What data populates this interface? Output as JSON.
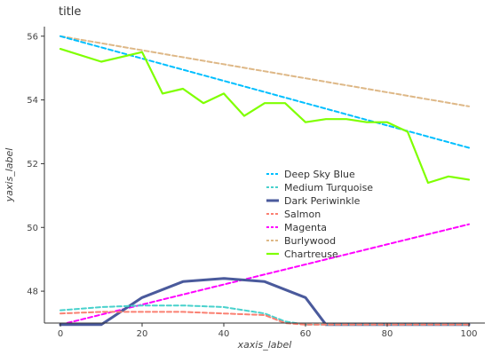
{
  "chart_data": {
    "type": "line",
    "title": "title",
    "xlabel": "xaxis_label",
    "ylabel": "yaxis_label",
    "xlim": [
      0,
      100
    ],
    "ylim": [
      47,
      56.3
    ],
    "xticks": [
      0,
      20,
      40,
      60,
      80,
      100
    ],
    "yticks": [
      48,
      50,
      52,
      54,
      56
    ],
    "grid": false,
    "legend_position": "center",
    "series": [
      {
        "name": "Deep Sky Blue",
        "color": "#00bfff",
        "x": [
          0,
          100
        ],
        "y": [
          56.0,
          52.5
        ]
      },
      {
        "name": "Medium Turquoise",
        "color": "#48d1cc",
        "x": [
          0,
          10,
          20,
          30,
          40,
          50,
          55,
          60,
          70,
          80,
          90,
          100
        ],
        "y": [
          47.4,
          47.5,
          47.55,
          47.55,
          47.5,
          47.3,
          47.05,
          46.95,
          46.95,
          46.95,
          46.95,
          46.95
        ]
      },
      {
        "name": "Dark Periwinkle",
        "color": "#4a5a9c",
        "x": [
          0,
          10,
          20,
          30,
          40,
          50,
          60,
          65,
          70,
          80,
          90,
          100
        ],
        "y": [
          46.95,
          46.95,
          47.8,
          48.3,
          48.4,
          48.3,
          47.8,
          46.95,
          46.95,
          46.95,
          46.95,
          46.95
        ]
      },
      {
        "name": "Salmon",
        "color": "#fa8072",
        "x": [
          0,
          10,
          20,
          30,
          40,
          50,
          55,
          60,
          70,
          80,
          90,
          100
        ],
        "y": [
          47.3,
          47.35,
          47.35,
          47.35,
          47.3,
          47.25,
          47.0,
          46.95,
          46.95,
          46.95,
          46.95,
          46.95
        ]
      },
      {
        "name": "Magenta",
        "color": "#ff00ff",
        "x": [
          0,
          100
        ],
        "y": [
          46.95,
          50.1
        ]
      },
      {
        "name": "Burlywood",
        "color": "#deb887",
        "x": [
          0,
          100
        ],
        "y": [
          56.0,
          53.8
        ]
      },
      {
        "name": "Chartreuse",
        "color": "#7fff00",
        "x": [
          0,
          10,
          20,
          25,
          30,
          35,
          40,
          45,
          50,
          55,
          60,
          65,
          70,
          75,
          80,
          85,
          90,
          95,
          100
        ],
        "y": [
          55.6,
          55.2,
          55.5,
          54.2,
          54.35,
          53.9,
          54.2,
          53.5,
          53.9,
          53.9,
          53.3,
          53.4,
          53.4,
          53.3,
          53.3,
          53.0,
          51.4,
          51.6,
          51.5
        ]
      }
    ]
  }
}
